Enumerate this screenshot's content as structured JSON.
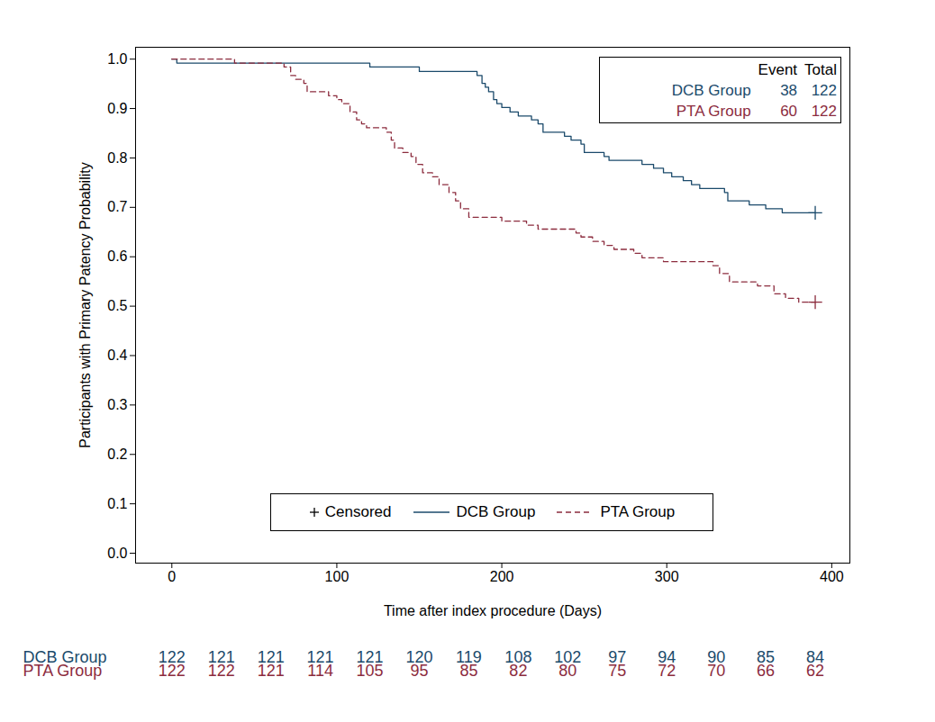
{
  "chart_data": {
    "type": "line",
    "x_label": "Time after index procedure (Days)",
    "y_label": "Participants with Primary Patency Probability",
    "xlim": [
      -22,
      411
    ],
    "xticks": [
      0,
      100,
      200,
      300,
      400
    ],
    "ylim": [
      -0.02,
      1.024
    ],
    "yticks": [
      {
        "value": 0,
        "label": "0.0"
      },
      0.1,
      0.2,
      0.3,
      0.4,
      0.5,
      0.6,
      0.7,
      0.8,
      0.9,
      {
        "value": 1,
        "label": "1.0"
      }
    ],
    "grid": false,
    "legend": "bottom",
    "censored_label": "Censored",
    "series": [
      {
        "name": "DCB Group",
        "color": "#1b4a6b",
        "line_style": "solid",
        "marker": "plus",
        "x": [
          0,
          3,
          120,
          150,
          185,
          188,
          190,
          192,
          195,
          197,
          200,
          205,
          210,
          218,
          222,
          225,
          238,
          242,
          248,
          250,
          262,
          265,
          285,
          292,
          298,
          303,
          310,
          315,
          320,
          335,
          337,
          350,
          360,
          370,
          390
        ],
        "values": [
          1.0,
          0.992,
          0.984,
          0.975,
          0.967,
          0.951,
          0.943,
          0.934,
          0.918,
          0.91,
          0.902,
          0.893,
          0.885,
          0.877,
          0.869,
          0.852,
          0.844,
          0.836,
          0.828,
          0.811,
          0.803,
          0.795,
          0.787,
          0.779,
          0.77,
          0.762,
          0.754,
          0.746,
          0.738,
          0.73,
          0.713,
          0.705,
          0.697,
          0.689,
          0.689
        ],
        "censored": [
          {
            "x": 390,
            "y": 0.689
          }
        ]
      },
      {
        "name": "PTA Group",
        "color": "#8c2c3e",
        "line_style": "dashed",
        "marker": "plus",
        "x": [
          0,
          38,
          68,
          72,
          75,
          80,
          82,
          95,
          100,
          103,
          108,
          112,
          115,
          118,
          130,
          133,
          135,
          140,
          145,
          148,
          152,
          158,
          162,
          168,
          172,
          175,
          180,
          200,
          215,
          222,
          245,
          248,
          255,
          262,
          268,
          280,
          285,
          298,
          328,
          332,
          338,
          355,
          365,
          372,
          380,
          390
        ],
        "values": [
          1.0,
          0.992,
          0.984,
          0.967,
          0.959,
          0.951,
          0.934,
          0.926,
          0.918,
          0.91,
          0.893,
          0.877,
          0.869,
          0.861,
          0.852,
          0.836,
          0.82,
          0.811,
          0.803,
          0.787,
          0.77,
          0.762,
          0.746,
          0.73,
          0.713,
          0.697,
          0.68,
          0.672,
          0.664,
          0.656,
          0.648,
          0.64,
          0.631,
          0.623,
          0.615,
          0.607,
          0.598,
          0.59,
          0.582,
          0.566,
          0.549,
          0.541,
          0.525,
          0.516,
          0.508,
          0.508
        ],
        "censored": [
          {
            "x": 390,
            "y": 0.508
          }
        ]
      }
    ],
    "event_table": {
      "columns": [
        "Event",
        "Total"
      ],
      "rows": [
        {
          "name": "DCB Group",
          "values": [
            38,
            122
          ]
        },
        {
          "name": "PTA Group",
          "values": [
            60,
            122
          ]
        }
      ]
    },
    "risk_table": {
      "x": [
        0,
        30,
        60,
        90,
        120,
        150,
        180,
        210,
        240,
        270,
        300,
        330,
        360,
        390
      ],
      "rows": [
        {
          "name": "DCB Group",
          "values": [
            122,
            121,
            121,
            121,
            121,
            120,
            119,
            108,
            102,
            97,
            94,
            90,
            85,
            84
          ]
        },
        {
          "name": "PTA Group",
          "values": [
            122,
            122,
            121,
            114,
            105,
            95,
            85,
            82,
            80,
            75,
            72,
            70,
            66,
            62
          ]
        }
      ]
    }
  }
}
